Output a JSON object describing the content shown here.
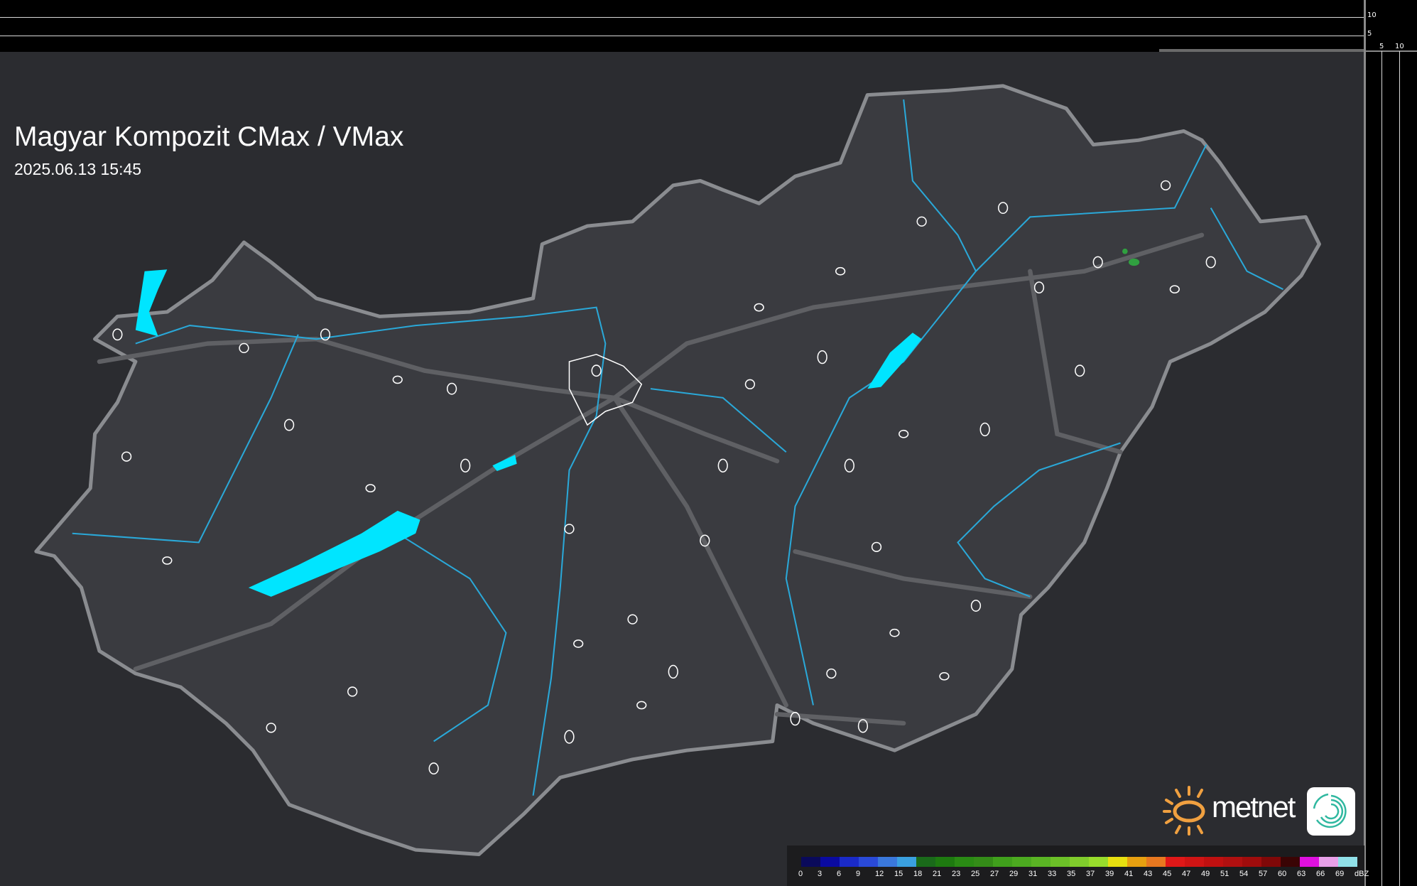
{
  "header": {
    "title": "Magyar Kompozit CMax / VMax",
    "datetime": "2025.06.13 15:45"
  },
  "side_profiles": {
    "top_axis_labels": [
      "10",
      "5"
    ],
    "right_axis_labels": [
      "5",
      "10"
    ]
  },
  "legend": {
    "unit": "dBZ",
    "labels": [
      "0",
      "3",
      "6",
      "9",
      "12",
      "15",
      "18",
      "21",
      "23",
      "25",
      "27",
      "29",
      "31",
      "33",
      "35",
      "37",
      "39",
      "41",
      "43",
      "45",
      "47",
      "49",
      "51",
      "54",
      "57",
      "60",
      "63",
      "66",
      "69"
    ],
    "colors": [
      "#0a0a5a",
      "#0a0aa0",
      "#1a2ac8",
      "#2a4ad8",
      "#3a78dc",
      "#3aa0e0",
      "#1a6a1a",
      "#1e7a10",
      "#2a8a14",
      "#348c18",
      "#40a01c",
      "#4caa20",
      "#5ab424",
      "#6cc028",
      "#80cc2c",
      "#98dc2c",
      "#e8e010",
      "#e8a010",
      "#e87820",
      "#e01818",
      "#d01414",
      "#c01010",
      "#b01010",
      "#a00c0c",
      "#800808",
      "#3a0404",
      "#e010e0",
      "#e8a0e8",
      "#90e0e8"
    ]
  },
  "logo": {
    "text": "metnet",
    "sun_color": "#f0a040",
    "app_color": "#30b8a0"
  },
  "map": {
    "country_fill": "#3a3b40",
    "border_color": "#8a8c90",
    "water_color": "#00e5ff",
    "river_color": "#2aa8d8",
    "echo_color": "#30a040"
  }
}
